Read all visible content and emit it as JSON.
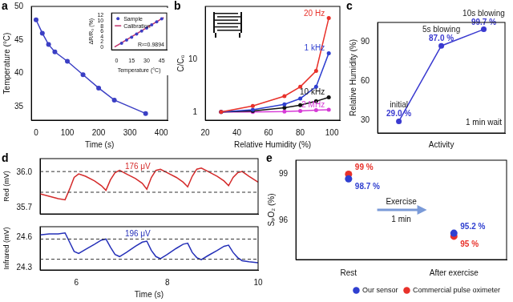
{
  "chart_data": [
    {
      "panel": "a",
      "type": "line",
      "x_label": "Time (s)",
      "y_label": "Temperature (°C)",
      "x": [
        0,
        20,
        40,
        60,
        100,
        150,
        200,
        250,
        350
      ],
      "values": [
        48,
        46,
        44.3,
        43.2,
        41.8,
        39.8,
        37.8,
        36,
        34
      ],
      "color": "#3b3fc4",
      "marker": "circle",
      "xlim": [
        -15,
        420
      ],
      "xticks": [
        0,
        100,
        200,
        300,
        400
      ],
      "ylim": [
        33,
        50
      ],
      "yticks": [
        35,
        40,
        45,
        50
      ]
    },
    {
      "type": "line",
      "x_label": "Temperature (°C)",
      "y_label": "ΔR/R₀ (%)",
      "xlim": [
        -5,
        50
      ],
      "xticks": [
        0,
        15,
        30,
        45
      ],
      "ylim": [
        -1,
        13
      ],
      "yticks": [
        0,
        2,
        4,
        6,
        8,
        10,
        12
      ],
      "legend": "top left",
      "annotations": [
        "R²=0.9894"
      ],
      "series": [
        {
          "name": "Sample",
          "type": "scatter",
          "marker": "circle",
          "color": "#3b3fc4",
          "x": [
            5,
            10,
            15,
            20,
            25,
            30,
            35,
            40,
            45
          ],
          "values": [
            1.5,
            2.7,
            3.8,
            5,
            6.1,
            7.3,
            8.5,
            9.6,
            10.8
          ]
        },
        {
          "name": "Calibration",
          "type": "line",
          "color": "#c0306a",
          "x": [
            -2,
            47
          ],
          "values": [
            0.1,
            11.3
          ]
        }
      ]
    },
    {
      "panel": "b",
      "type": "line",
      "log": "y",
      "x_label": "Relative Humidity (%)",
      "y_label": "C/C₀",
      "xlim": [
        20,
        105
      ],
      "xticks": [
        20,
        40,
        60,
        80,
        100
      ],
      "ylim": [
        0.7,
        100
      ],
      "yticks": [
        1,
        10
      ],
      "marker": "circle",
      "series": [
        {
          "name": "20 Hz",
          "color": "#e8312a",
          "x": [
            30,
            50,
            70,
            80,
            90,
            98
          ],
          "values": [
            1,
            1.3,
            2,
            3,
            6,
            60
          ]
        },
        {
          "name": "1 kHz",
          "color": "#2f3fd0",
          "x": [
            30,
            50,
            70,
            80,
            90,
            98
          ],
          "values": [
            1,
            1.1,
            1.4,
            1.8,
            3,
            13
          ]
        },
        {
          "name": "10 kHz",
          "color": "#111111",
          "x": [
            30,
            50,
            70,
            80,
            90,
            98
          ],
          "values": [
            1,
            1.05,
            1.2,
            1.35,
            1.6,
            1.9
          ]
        },
        {
          "name": "2 MHz",
          "color": "#d63ad6",
          "x": [
            30,
            50,
            70,
            80,
            90,
            98
          ],
          "values": [
            1,
            1,
            1.02,
            1.05,
            1.08,
            1.1
          ]
        }
      ]
    },
    {
      "panel": "c",
      "type": "line",
      "x_label": "Activity",
      "y_label": "Relative Humidity (%)",
      "categories": [
        "initial",
        "5s blowing",
        "10s blowing"
      ],
      "values": [
        29.0,
        87.0,
        99.7
      ],
      "value_labels": [
        "29.0 %",
        "87.0 %",
        "99.7 %"
      ],
      "data_labels": true,
      "ylim": [
        20,
        105
      ],
      "yticks": [
        30,
        60,
        90
      ],
      "tick_labels": "y",
      "color": "#3a3ad0",
      "marker": "circle",
      "annotations": [
        "1 min wait"
      ]
    },
    {
      "panel": "d",
      "type": "line",
      "y_label": "Red (mV)",
      "x": [
        5.2,
        5.4,
        5.6,
        5.75,
        5.85,
        5.95,
        6.05,
        6.2,
        6.4,
        6.55,
        6.65,
        6.75,
        6.85,
        6.95,
        7.1,
        7.3,
        7.45,
        7.55,
        7.65,
        7.75,
        7.85,
        8.0,
        8.2,
        8.35,
        8.45,
        8.55,
        8.65,
        8.75,
        8.9,
        9.1,
        9.25,
        9.35,
        9.45,
        9.55,
        9.65,
        9.8,
        10.0
      ],
      "values": [
        35.82,
        35.8,
        35.78,
        35.77,
        35.86,
        35.96,
        35.99,
        35.97,
        35.93,
        35.89,
        35.85,
        35.94,
        36.0,
        36.02,
        35.99,
        35.95,
        35.91,
        35.86,
        35.96,
        36.02,
        36.03,
        36.0,
        35.96,
        35.92,
        35.88,
        35.97,
        36.03,
        36.04,
        36.01,
        35.97,
        35.93,
        35.89,
        35.96,
        36.0,
        36.01,
        35.97,
        35.92
      ],
      "color": "#d42a2a",
      "xlim": [
        5.2,
        10
      ],
      "xticks": [
        6,
        8,
        10
      ],
      "ylim": [
        35.65,
        36.12
      ],
      "yticks": [
        35.7,
        {
          "value": 36,
          "label": "36.0"
        }
      ],
      "tick_labels": "y",
      "reference_lines": [
        36.01,
        35.834
      ],
      "annotations": [
        "176 μV"
      ]
    },
    {
      "type": "line",
      "x_label": "Time (s)",
      "y_label": "Infrared (mV)",
      "x": [
        5.2,
        5.4,
        5.6,
        5.75,
        5.85,
        5.95,
        6.05,
        6.2,
        6.4,
        6.55,
        6.65,
        6.75,
        6.85,
        6.95,
        7.1,
        7.3,
        7.45,
        7.55,
        7.65,
        7.75,
        7.85,
        8.0,
        8.2,
        8.35,
        8.45,
        8.55,
        8.65,
        8.75,
        8.9,
        9.1,
        9.25,
        9.35,
        9.45,
        9.55,
        9.65,
        9.8,
        10.0
      ],
      "values": [
        24.62,
        24.63,
        24.63,
        24.64,
        24.55,
        24.46,
        24.44,
        24.48,
        24.53,
        24.57,
        24.58,
        24.5,
        24.43,
        24.41,
        24.45,
        24.51,
        24.55,
        24.56,
        24.47,
        24.41,
        24.39,
        24.43,
        24.49,
        24.53,
        24.54,
        24.45,
        24.4,
        24.38,
        24.42,
        24.47,
        24.51,
        24.52,
        24.45,
        24.4,
        24.37,
        24.36,
        24.35
      ],
      "color": "#2530b8",
      "xlim": [
        5.2,
        10
      ],
      "xticks": [
        6,
        8,
        10
      ],
      "ylim": [
        24.28,
        24.7
      ],
      "yticks": [
        24.3,
        24.6
      ],
      "reference_lines": [
        24.58,
        24.384
      ],
      "annotations": [
        "196 μV"
      ]
    },
    {
      "panel": "e",
      "type": "scatter",
      "y_label": "SₚO₂ (%)",
      "categories": [
        "Rest",
        "After exercise"
      ],
      "ylim": [
        93.5,
        99.9
      ],
      "yticks": [
        96,
        99
      ],
      "legend": "bottom right",
      "data_labels": true,
      "marker": "circle",
      "annotations": [
        "Exercise",
        "1 min"
      ],
      "series": [
        {
          "name": "Our sensor",
          "color": "#2f3fd0",
          "values": [
            98.7,
            95.2
          ],
          "value_labels": [
            "98.7 %",
            "95.2 %"
          ]
        },
        {
          "name": "Commercial pulse oximeter",
          "color": "#e8312a",
          "values": [
            99,
            95
          ],
          "value_labels": [
            "99 %",
            "95 %"
          ]
        }
      ]
    }
  ]
}
